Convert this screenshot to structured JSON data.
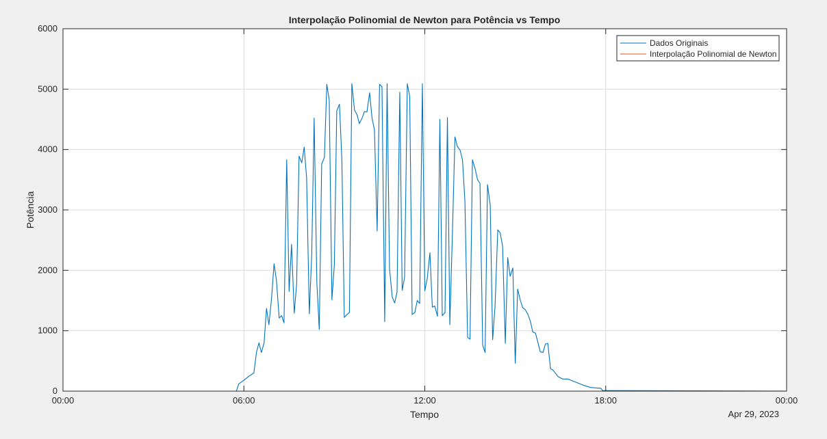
{
  "chart_data": {
    "type": "line",
    "title": "Interpolação Polinomial de Newton para Potência vs Tempo",
    "xlabel": "Tempo",
    "ylabel": "Potência",
    "date_label": "Apr 29, 2023",
    "xlim": [
      0,
      24
    ],
    "ylim": [
      0,
      6000
    ],
    "x_ticks": [
      0,
      6,
      12,
      18,
      24
    ],
    "x_tick_labels": [
      "00:00",
      "06:00",
      "12:00",
      "18:00",
      "00:00"
    ],
    "y_ticks": [
      0,
      1000,
      2000,
      3000,
      4000,
      5000,
      6000
    ],
    "y_tick_labels": [
      "0",
      "1000",
      "2000",
      "3000",
      "4000",
      "5000",
      "6000"
    ],
    "grid": true,
    "legend_position": "top-right",
    "series": [
      {
        "name": "Dados Originais",
        "color": "#0072BD",
        "x": [
          0,
          5.75,
          5.83,
          6.0,
          6.17,
          6.33,
          6.42,
          6.5,
          6.58,
          6.67,
          6.75,
          6.83,
          6.92,
          7.0,
          7.08,
          7.17,
          7.25,
          7.33,
          7.42,
          7.5,
          7.58,
          7.67,
          7.75,
          7.83,
          7.92,
          8.0,
          8.08,
          8.17,
          8.25,
          8.33,
          8.42,
          8.5,
          8.58,
          8.67,
          8.75,
          8.83,
          8.92,
          9.0,
          9.08,
          9.17,
          9.25,
          9.33,
          9.42,
          9.5,
          9.58,
          9.67,
          9.75,
          9.83,
          9.92,
          10.0,
          10.08,
          10.17,
          10.25,
          10.33,
          10.42,
          10.5,
          10.58,
          10.67,
          10.75,
          10.83,
          10.92,
          11.0,
          11.08,
          11.17,
          11.25,
          11.33,
          11.42,
          11.5,
          11.58,
          11.67,
          11.75,
          11.83,
          11.92,
          12.0,
          12.08,
          12.17,
          12.25,
          12.33,
          12.42,
          12.5,
          12.58,
          12.67,
          12.75,
          12.83,
          12.92,
          13.0,
          13.08,
          13.17,
          13.25,
          13.33,
          13.42,
          13.5,
          13.58,
          13.67,
          13.75,
          13.83,
          13.92,
          14.0,
          14.08,
          14.17,
          14.25,
          14.33,
          14.42,
          14.5,
          14.58,
          14.67,
          14.75,
          14.83,
          14.92,
          15.0,
          15.08,
          15.17,
          15.25,
          15.33,
          15.42,
          15.5,
          15.58,
          15.67,
          15.75,
          15.83,
          15.92,
          16.0,
          16.08,
          16.17,
          16.25,
          16.42,
          16.58,
          16.75,
          17.0,
          17.25,
          17.5,
          17.75,
          17.83,
          17.9,
          24
        ],
        "y": [
          0,
          0,
          120,
          180,
          250,
          300,
          650,
          800,
          640,
          800,
          1370,
          1100,
          1550,
          2110,
          1830,
          1210,
          1250,
          1130,
          3830,
          1650,
          2430,
          1290,
          1780,
          3890,
          3780,
          4040,
          3530,
          1280,
          2270,
          4520,
          1790,
          1020,
          3760,
          3870,
          5080,
          4820,
          1510,
          2090,
          4640,
          4750,
          3820,
          1220,
          1270,
          1300,
          5090,
          4650,
          4580,
          4430,
          4520,
          4630,
          4620,
          4940,
          4520,
          4330,
          2650,
          5080,
          5040,
          1150,
          5090,
          2030,
          1560,
          1460,
          1640,
          4950,
          1670,
          1880,
          5090,
          4880,
          1270,
          1300,
          1500,
          1450,
          5090,
          1660,
          1860,
          2290,
          1390,
          1410,
          1240,
          4500,
          1250,
          1300,
          4530,
          1100,
          2680,
          4210,
          4050,
          3990,
          3830,
          3150,
          890,
          860,
          3830,
          3680,
          3500,
          3440,
          760,
          640,
          3420,
          3080,
          850,
          1410,
          2670,
          2620,
          2400,
          790,
          2210,
          1900,
          2040,
          460,
          1690,
          1500,
          1380,
          1350,
          1270,
          1160,
          980,
          960,
          810,
          650,
          640,
          780,
          790,
          370,
          350,
          240,
          200,
          200,
          150,
          100,
          60,
          50,
          50,
          10,
          0
        ]
      },
      {
        "name": "Interpolação Polinomial de Newton",
        "color": "#D95319",
        "x": [],
        "y": []
      }
    ]
  }
}
